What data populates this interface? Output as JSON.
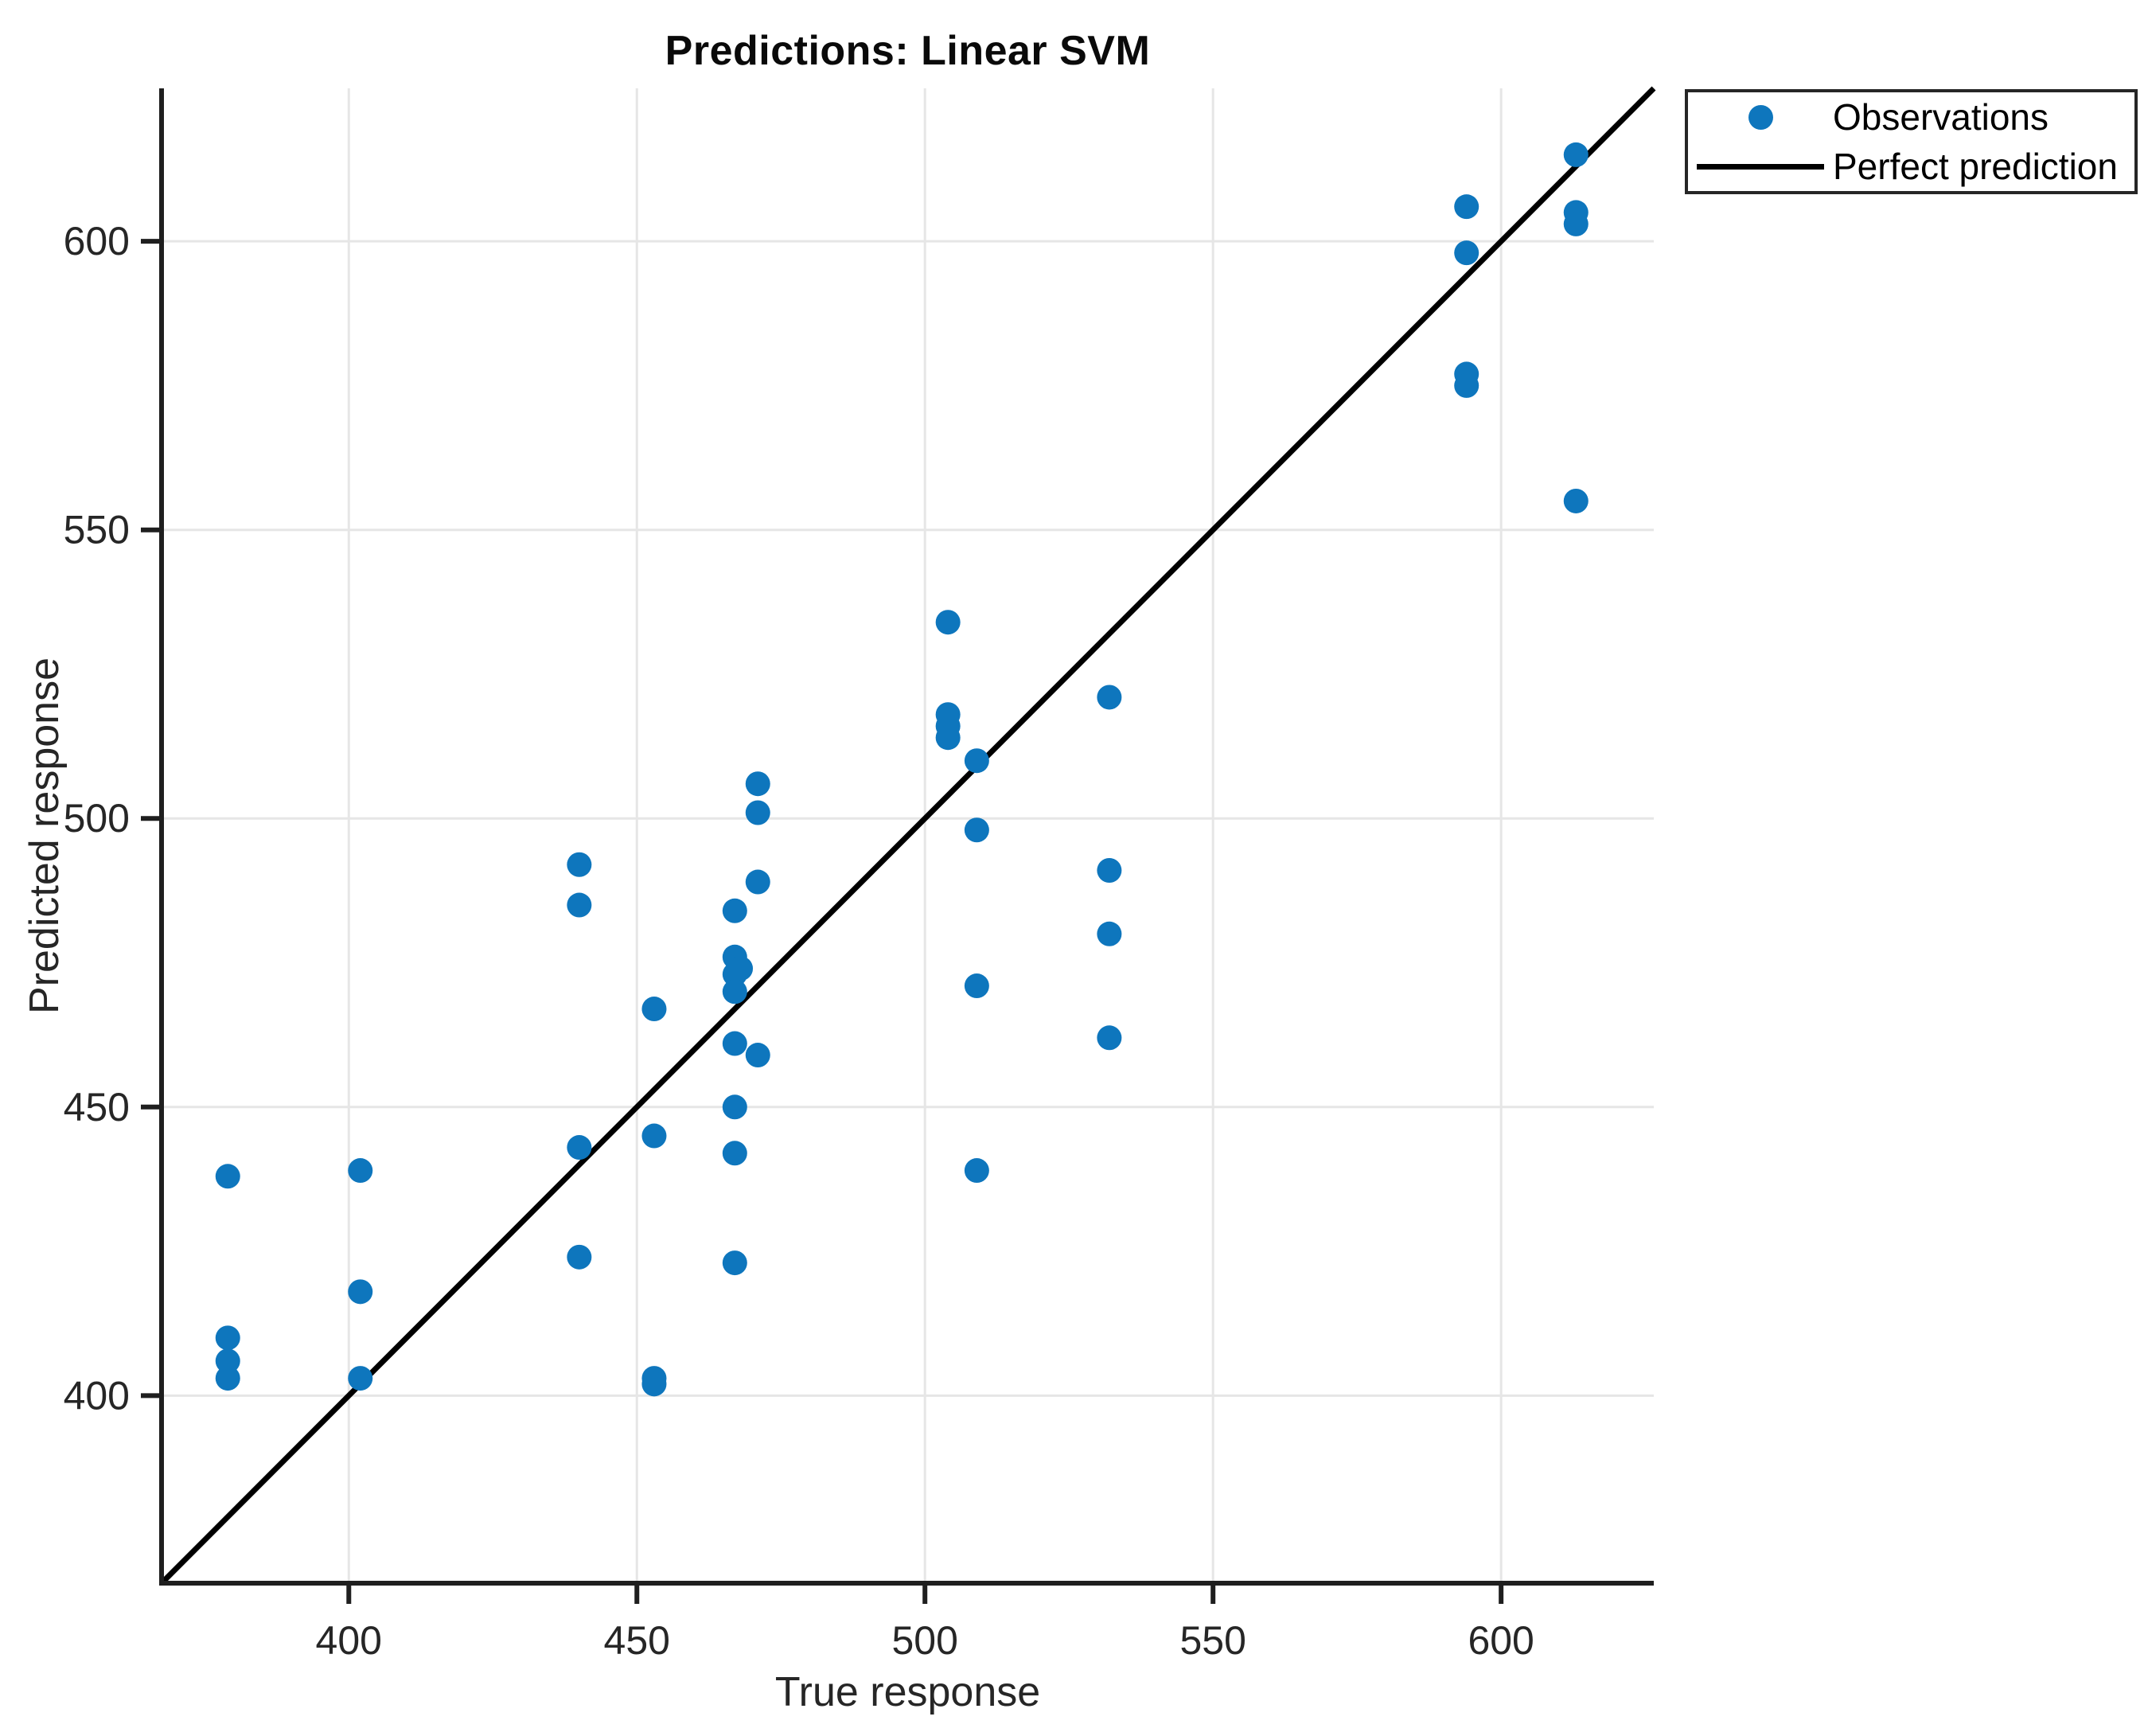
{
  "figure": {
    "background": "#ffffff"
  },
  "chart_data": {
    "type": "scatter",
    "title": "Predictions: Linear SVM",
    "xlabel": "True response",
    "ylabel": "Predicted response",
    "xlim": [
      367.5,
      626.5
    ],
    "ylim": [
      367.5,
      626.5
    ],
    "xticks": [
      400,
      450,
      500,
      550,
      600
    ],
    "yticks": [
      400,
      450,
      500,
      550,
      600
    ],
    "grid": true,
    "legend_position": "top-right-outside",
    "colors": {
      "observation": "#0e76bd",
      "perfect_line": "#000000",
      "grid": "#e6e6e6",
      "axis": "#1f1f1f",
      "tick_label": "#262626"
    },
    "series": [
      {
        "name": "Observations",
        "type": "scatter",
        "points": [
          [
            379,
            438
          ],
          [
            379,
            410
          ],
          [
            379,
            406
          ],
          [
            379,
            403
          ],
          [
            402,
            439
          ],
          [
            402,
            418
          ],
          [
            402,
            403
          ],
          [
            440,
            492
          ],
          [
            440,
            485
          ],
          [
            440,
            443
          ],
          [
            440,
            424
          ],
          [
            453,
            467
          ],
          [
            453,
            445
          ],
          [
            453,
            403
          ],
          [
            453,
            402
          ],
          [
            471,
            506
          ],
          [
            471,
            501
          ],
          [
            471,
            489
          ],
          [
            467,
            484
          ],
          [
            467,
            476
          ],
          [
            468,
            474
          ],
          [
            467,
            473
          ],
          [
            467,
            470
          ],
          [
            467,
            461
          ],
          [
            471,
            459
          ],
          [
            467,
            450
          ],
          [
            467,
            442
          ],
          [
            467,
            423
          ],
          [
            504,
            534
          ],
          [
            504,
            518
          ],
          [
            504,
            516
          ],
          [
            504,
            514
          ],
          [
            509,
            510
          ],
          [
            509,
            498
          ],
          [
            509,
            471
          ],
          [
            509,
            439
          ],
          [
            532,
            521
          ],
          [
            532,
            491
          ],
          [
            532,
            480
          ],
          [
            532,
            462
          ],
          [
            594,
            606
          ],
          [
            594,
            598
          ],
          [
            594,
            577
          ],
          [
            594,
            575
          ],
          [
            613,
            615
          ],
          [
            613,
            605
          ],
          [
            613,
            603
          ],
          [
            613,
            555
          ]
        ]
      },
      {
        "name": "Perfect prediction",
        "type": "line",
        "points": [
          [
            367.5,
            367.5
          ],
          [
            626.5,
            626.5
          ]
        ]
      }
    ]
  }
}
